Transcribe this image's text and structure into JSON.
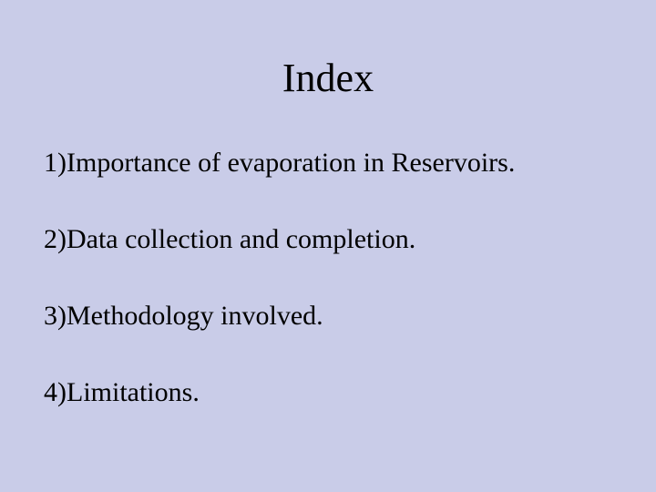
{
  "slide": {
    "background_color": "#c9cce8",
    "text_color": "#000000",
    "font_family": "Times New Roman",
    "title": "Index",
    "title_fontsize": 44,
    "item_fontsize": 30,
    "items": [
      "1)Importance of evaporation in Reservoirs.",
      "2)Data collection and completion.",
      "3)Methodology involved.",
      "4)Limitations."
    ]
  }
}
